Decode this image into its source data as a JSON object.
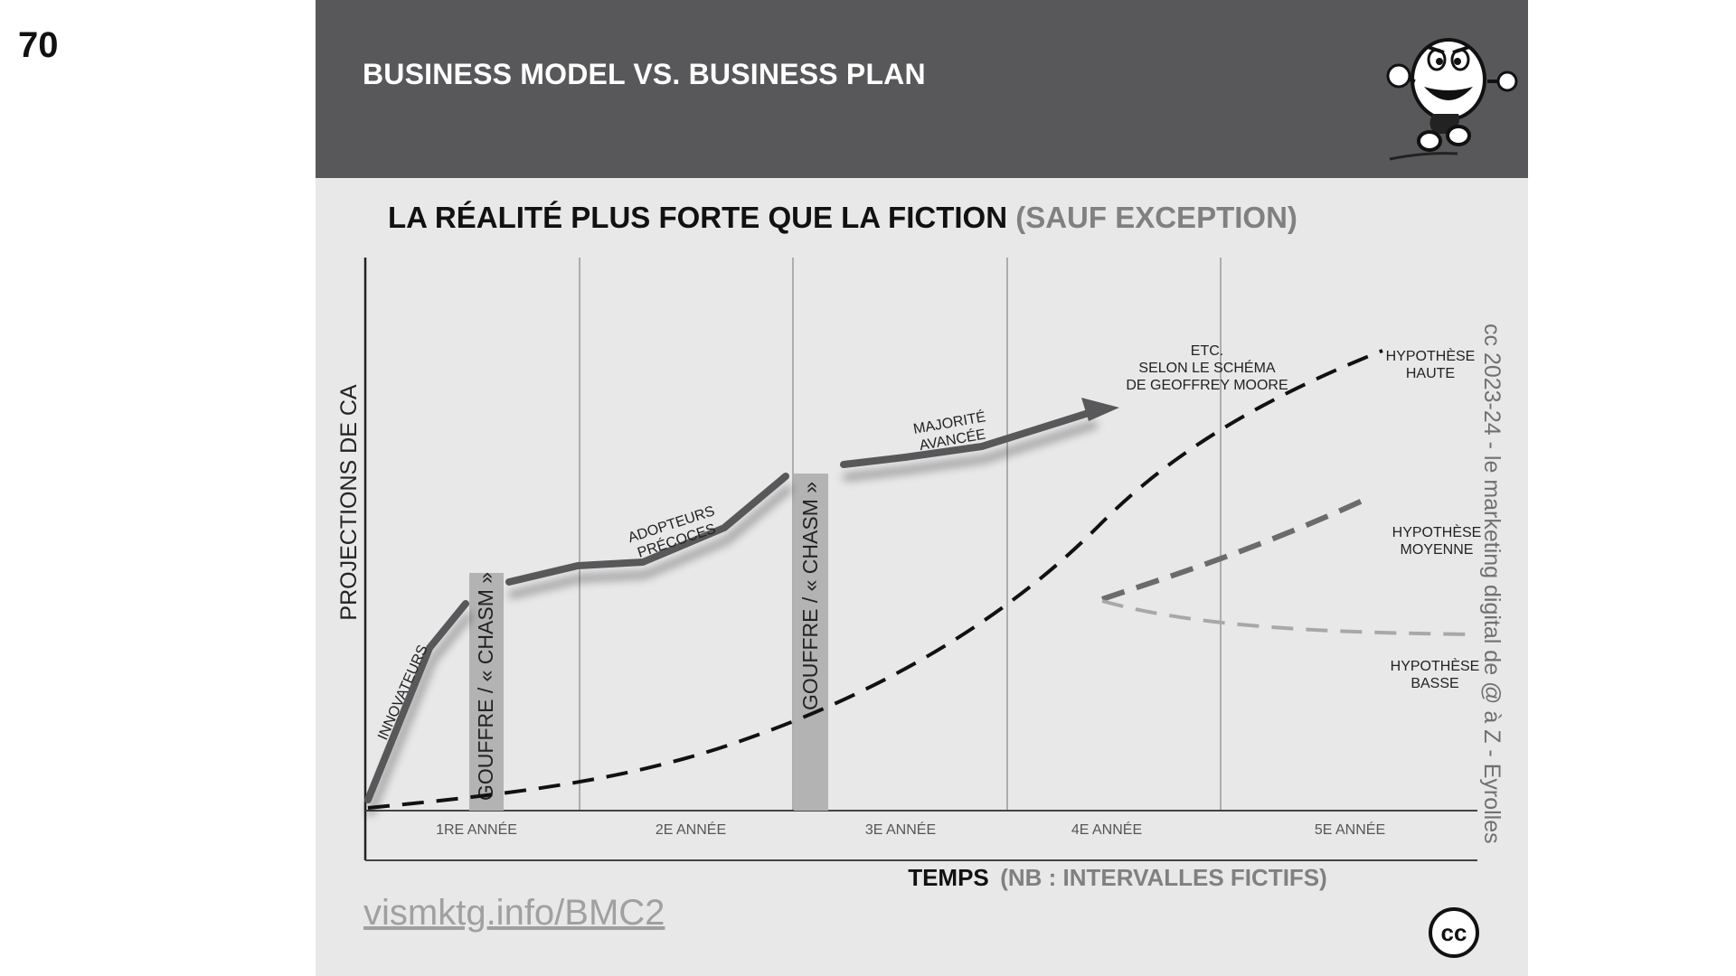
{
  "page_number": "70",
  "header": {
    "title": "BUSINESS MODEL VS. BUSINESS PLAN"
  },
  "subtitle": {
    "main": "LA RÉALITÉ PLUS FORTE QUE LA FICTION",
    "note": "(SAUF EXCEPTION)"
  },
  "diagram": {
    "y_axis_label": "PROJECTIONS DE CA",
    "x_axis_label": "TEMPS",
    "x_axis_note": "(NB : INTERVALLES FICTIFS)",
    "periods": [
      "1RE ANNÉE",
      "2E ANNÉE",
      "3E ANNÉE",
      "4E ANNÉE",
      "5E ANNÉE"
    ],
    "chasm_label": "GOUFFRE / « CHASM »",
    "segments": {
      "innovators": "INNOVATEURS",
      "early_adopters": [
        "ADOPTEURS",
        "PRÉCOCES"
      ],
      "early_majority": [
        "MAJORITÉ",
        "AVANCÉE"
      ],
      "etc": [
        "ETC.",
        "SELON LE SCHÉMA",
        "DE GEOFFREY MOORE"
      ]
    },
    "hypotheses": {
      "high": [
        "HYPOTHÈSE",
        "HAUTE"
      ],
      "medium": [
        "HYPOTHÈSE",
        "MOYENNE"
      ],
      "low": [
        "HYPOTHÈSE",
        "BASSE"
      ]
    },
    "colors": {
      "reality_line": "#58585a",
      "chasm_bar": "#b3b3b3",
      "high_line": "#111111",
      "medium_line": "#6b6b6b",
      "low_line": "#a8a8a8",
      "gridline": "#999999"
    }
  },
  "footer": {
    "link": "vismktg.info/BMC2",
    "side_credit": "cc 2023-24  - le marketing digital de @ à Z - Eyrolles",
    "cc_badge": "cc"
  }
}
